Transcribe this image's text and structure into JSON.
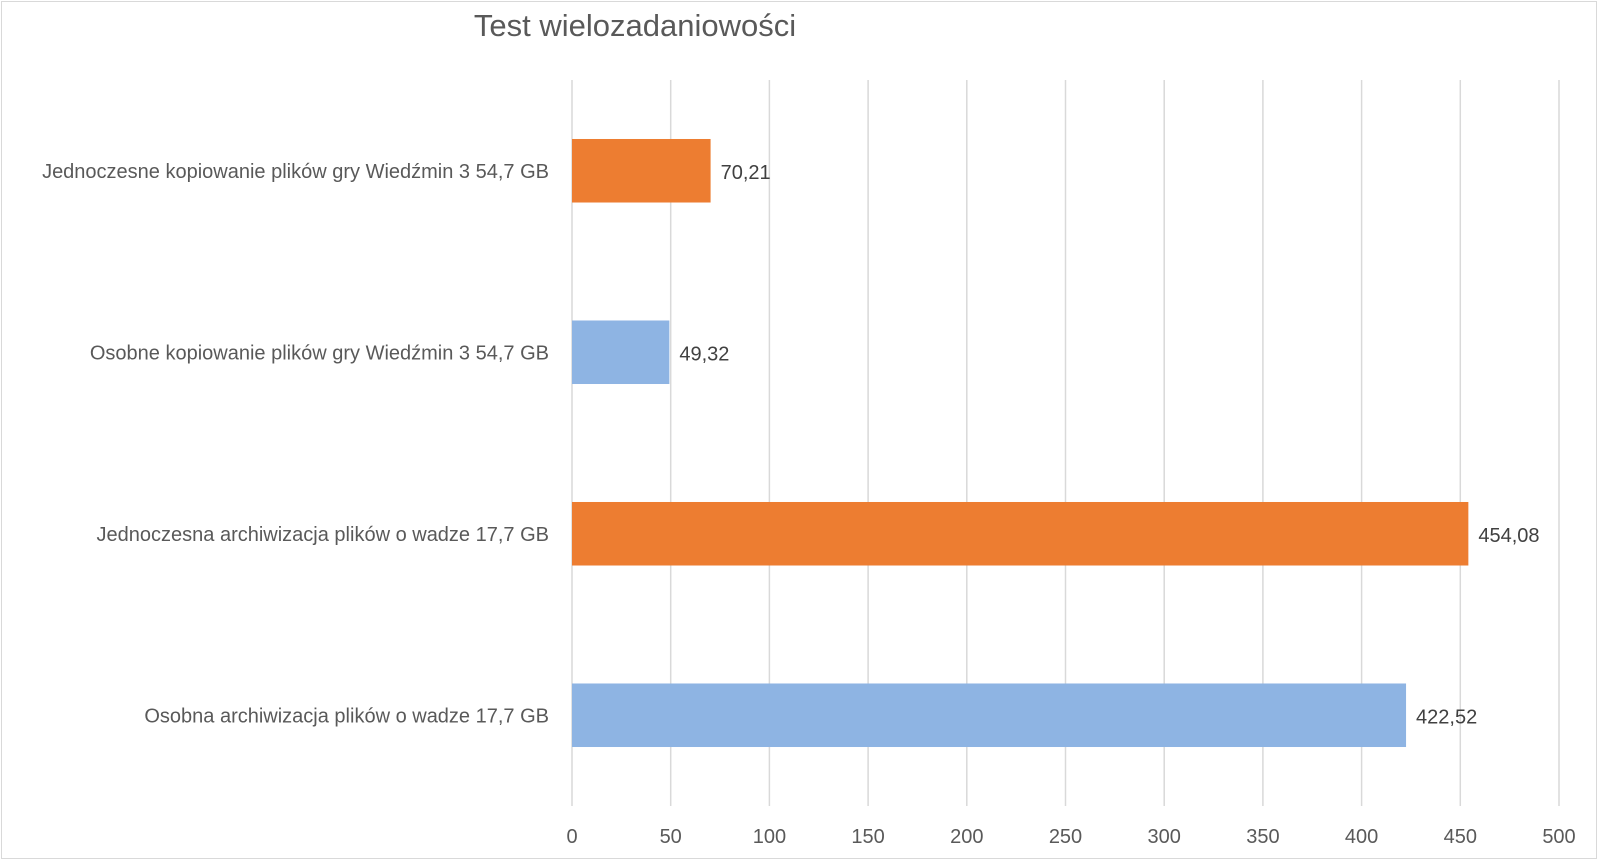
{
  "chart_data": {
    "type": "bar",
    "orientation": "horizontal",
    "title": "Test wielozadaniowości",
    "xlabel": "",
    "ylabel": "",
    "xlim": [
      0,
      500
    ],
    "x_ticks": [
      0,
      50,
      100,
      150,
      200,
      250,
      300,
      350,
      400,
      450,
      500
    ],
    "grid": true,
    "legend": "none",
    "categories": [
      "Jednoczesne kopiowanie plików gry Wiedźmin 3 54,7 GB",
      "Osobne kopiowanie plików gry Wiedźmin 3 54,7 GB",
      "Jednoczesna archiwizacja plików o wadze 17,7 GB",
      "Osobna archiwizacja plików o wadze 17,7 GB"
    ],
    "values": [
      70.21,
      49.32,
      454.08,
      422.52
    ],
    "value_labels": [
      "70,21",
      "49,32",
      "454,08",
      "422,52"
    ],
    "colors": [
      "#ed7d31",
      "#8eb4e3",
      "#ed7d31",
      "#8eb4e3"
    ]
  }
}
